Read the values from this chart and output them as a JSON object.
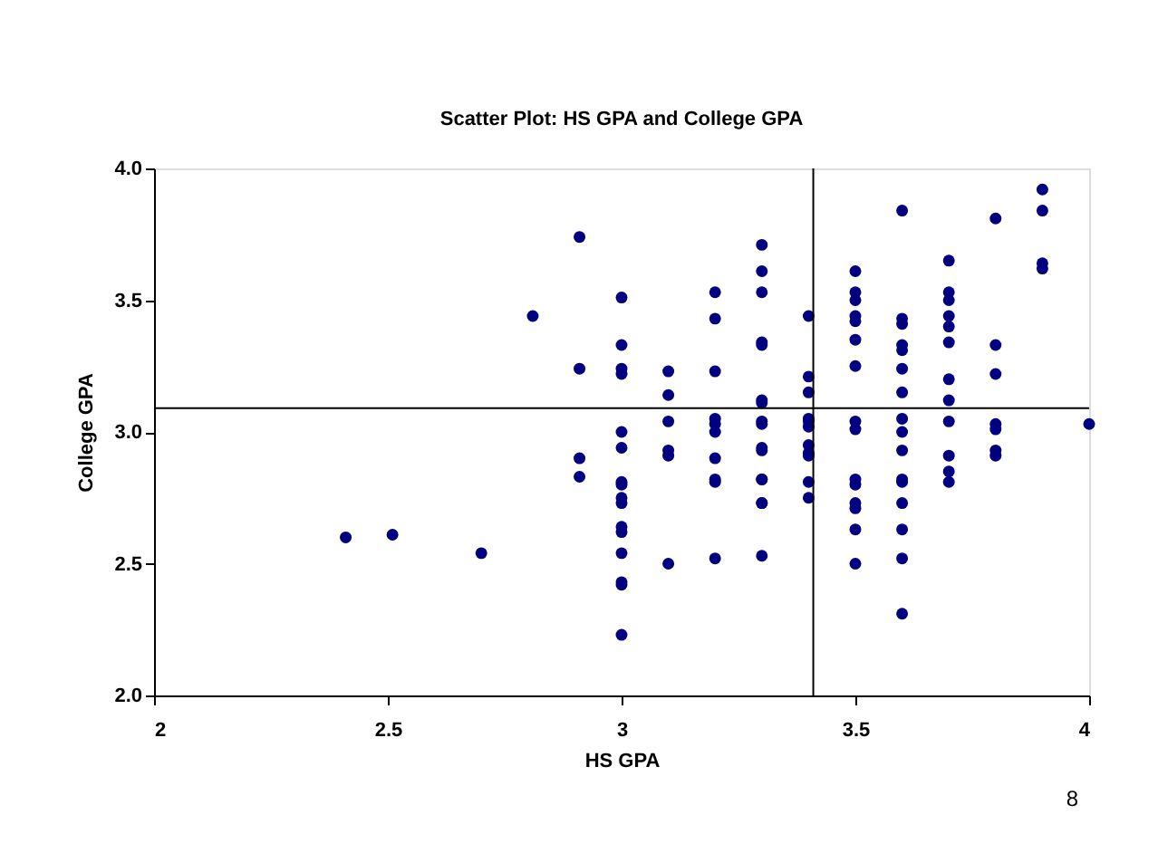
{
  "chart_data": {
    "type": "scatter",
    "title": "Scatter Plot:  HS GPA and College GPA",
    "xlabel": "HS GPA",
    "ylabel": "College GPA",
    "xlim": [
      2,
      4
    ],
    "xticks": [
      2,
      2.5,
      3,
      3.5,
      4
    ],
    "ylim": [
      2,
      4
    ],
    "yticks": [
      {
        "value": 2,
        "label": "2.0"
      },
      {
        "value": 2.5,
        "label": "2.5"
      },
      {
        "value": 3,
        "label": "3.0"
      },
      {
        "value": 3.5,
        "label": "3.5"
      },
      {
        "value": 4,
        "label": "4.0"
      }
    ],
    "grid": false,
    "legend": false,
    "marker": "circle",
    "series": [
      {
        "color": "#000080",
        "x": [
          2.41,
          2.51,
          2.7,
          2.81,
          2.91,
          2.91,
          2.91,
          2.91,
          3,
          3,
          3,
          3,
          3,
          3,
          3,
          3,
          3,
          3,
          3,
          3,
          3,
          3,
          3,
          3,
          3.1,
          3.1,
          3.1,
          3.1,
          3.1,
          3.1,
          3.2,
          3.2,
          3.2,
          3.2,
          3.2,
          3.2,
          3.2,
          3.2,
          3.2,
          3.2,
          3.3,
          3.3,
          3.3,
          3.3,
          3.3,
          3.3,
          3.3,
          3.3,
          3.3,
          3.3,
          3.3,
          3.3,
          3.3,
          3.3,
          3.3,
          3.3,
          3.4,
          3.4,
          3.4,
          3.4,
          3.4,
          3.4,
          3.4,
          3.4,
          3.4,
          3.4,
          3.4,
          3.5,
          3.5,
          3.5,
          3.5,
          3.5,
          3.5,
          3.5,
          3.5,
          3.5,
          3.5,
          3.5,
          3.5,
          3.5,
          3.5,
          3.5,
          3.6,
          3.6,
          3.6,
          3.6,
          3.6,
          3.6,
          3.6,
          3.6,
          3.6,
          3.6,
          3.6,
          3.6,
          3.6,
          3.6,
          3.6,
          3.6,
          3.7,
          3.7,
          3.7,
          3.7,
          3.7,
          3.7,
          3.7,
          3.7,
          3.7,
          3.7,
          3.7,
          3.7,
          3.8,
          3.8,
          3.8,
          3.8,
          3.8,
          3.8,
          3.8,
          3.9,
          3.9,
          3.9,
          3.9,
          4
        ],
        "values": [
          2.6,
          2.61,
          2.54,
          3.44,
          3.74,
          3.24,
          2.9,
          2.83,
          3.51,
          3.33,
          3.24,
          3.22,
          3,
          2.94,
          2.81,
          2.8,
          2.75,
          2.73,
          2.64,
          2.62,
          2.54,
          2.43,
          2.42,
          2.23,
          3.23,
          3.14,
          3.04,
          2.93,
          2.91,
          2.5,
          3.53,
          3.43,
          3.23,
          3.05,
          3.03,
          3,
          2.9,
          2.82,
          2.81,
          2.52,
          3.71,
          3.61,
          3.53,
          3.34,
          3.33,
          3.12,
          3.11,
          3.04,
          3.03,
          2.94,
          2.93,
          2.82,
          2.82,
          2.73,
          2.73,
          2.53,
          3.44,
          3.21,
          3.15,
          3.05,
          3.04,
          3.02,
          2.95,
          2.92,
          2.91,
          2.81,
          2.75,
          3.61,
          3.53,
          3.5,
          3.44,
          3.42,
          3.35,
          3.25,
          3.04,
          3.01,
          2.82,
          2.8,
          2.73,
          2.71,
          2.63,
          2.5,
          3.84,
          3.43,
          3.41,
          3.33,
          3.31,
          3.24,
          3.15,
          3.05,
          3,
          2.93,
          2.82,
          2.81,
          2.73,
          2.63,
          2.52,
          2.31,
          3.65,
          3.53,
          3.5,
          3.44,
          3.4,
          3.34,
          3.2,
          3.12,
          3.04,
          2.91,
          2.85,
          2.81,
          3.81,
          3.33,
          3.22,
          3.03,
          3.01,
          2.93,
          2.91,
          3.92,
          3.84,
          3.64,
          3.62,
          3.03
        ]
      }
    ],
    "ref_lines": [
      {
        "axis": "x",
        "value": 3.41,
        "color": "#000000"
      },
      {
        "axis": "y",
        "value": 3.09,
        "color": "#000000"
      }
    ],
    "annotations": [
      "8"
    ]
  }
}
